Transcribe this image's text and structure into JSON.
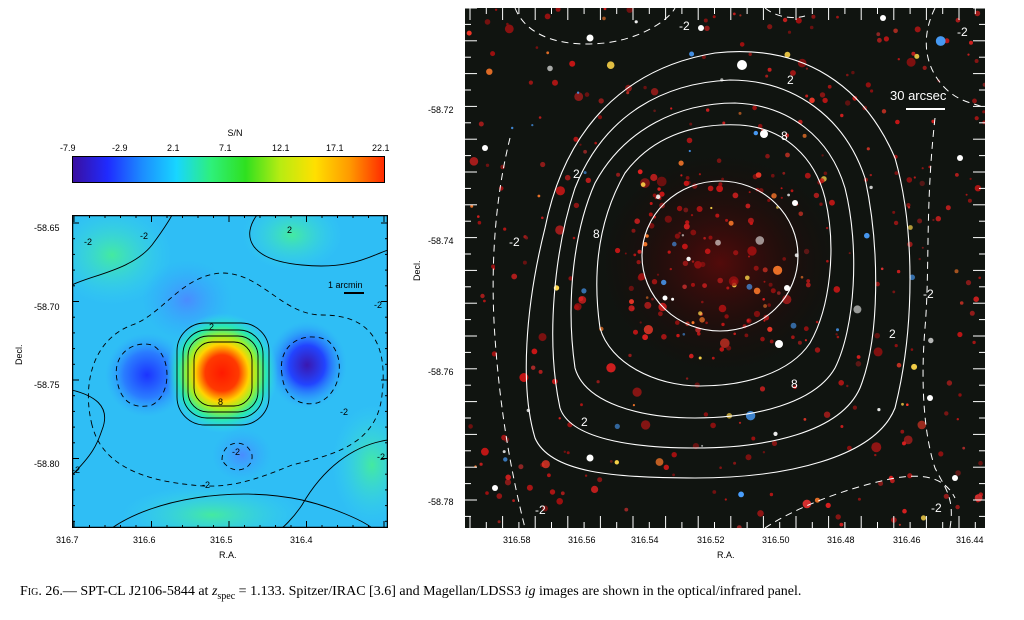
{
  "colorbar": {
    "title": "S/N",
    "ticks": [
      "-7.9",
      "-2.9",
      "2.1",
      "7.1",
      "12.1",
      "17.1",
      "22.1"
    ],
    "stops": [
      "#3a0fa0",
      "#1f2bff",
      "#1c8cff",
      "#18d6ff",
      "#2ef07a",
      "#2fe01f",
      "#b8ec12",
      "#ffe000",
      "#ff9a00",
      "#ff2a00"
    ]
  },
  "left_panel": {
    "ylabel": "Decl.",
    "xlabel": "R.A.",
    "yticks": [
      "-58.65",
      "-58.70",
      "-58.75",
      "-58.80"
    ],
    "xticks": [
      "316.7",
      "316.6",
      "316.5",
      "316.4"
    ],
    "scalebar": "1 arcmin",
    "contour_labels": [
      "-2",
      "-2",
      "2",
      "-2",
      "2",
      "8",
      "-2",
      "-2",
      "-2",
      "-2",
      "-2"
    ]
  },
  "right_panel": {
    "ylabel": "Decl.",
    "xlabel": "R.A.",
    "yticks": [
      "-58.72",
      "-58.74",
      "-58.76",
      "-58.78"
    ],
    "xticks": [
      "316.58",
      "316.56",
      "316.54",
      "316.52",
      "316.50",
      "316.48",
      "316.46",
      "316.44"
    ],
    "scalebar": "30 arcsec",
    "contour_labels": [
      "2",
      "8",
      "2",
      "8",
      "8",
      "2",
      "2",
      "-2",
      "-2",
      "-2",
      "-2",
      "-2",
      "-2"
    ]
  },
  "caption": {
    "fig": "Fig. 26.",
    "text_1": "— SPT-CL J2106-5844 at ",
    "z": "z",
    "z_sub": "spec",
    "text_2": " = 1.133. Spitzer/IRAC [3.6] and Magellan/LDSS3 ",
    "bands": "ig",
    "text_3": " images are shown in the optical/infrared panel."
  }
}
